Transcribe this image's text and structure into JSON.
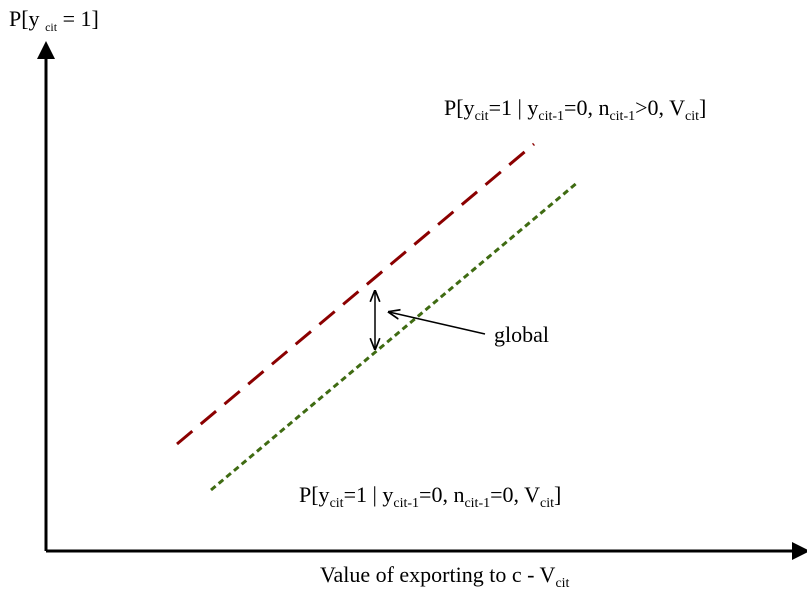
{
  "y_axis_label": {
    "pre": "P[y ",
    "sub": "cit",
    "post": " = 1]"
  },
  "x_axis_label": {
    "pre": "Value of exporting to c - V",
    "sub": "cit"
  },
  "upper_curve_label": {
    "t1": "P[y",
    "s1": "cit",
    "t2": "=1 | y",
    "s2": "cit-1",
    "t3": "=0, n",
    "s3": "cit-1",
    "t4": ">0, V",
    "s4": "cit",
    "t5": "]"
  },
  "lower_curve_label": {
    "t1": "P[y",
    "s1": "cit",
    "t2": "=1 | y",
    "s2": "cit-1",
    "t3": "=0, n",
    "s3": "cit-1",
    "t4": "=0, V",
    "s4": "cit",
    "t5": "]"
  },
  "gap_annotation": "global",
  "colors": {
    "upper_line": "#8b0000",
    "lower_line": "#3f6b12",
    "axes": "#000000"
  }
}
